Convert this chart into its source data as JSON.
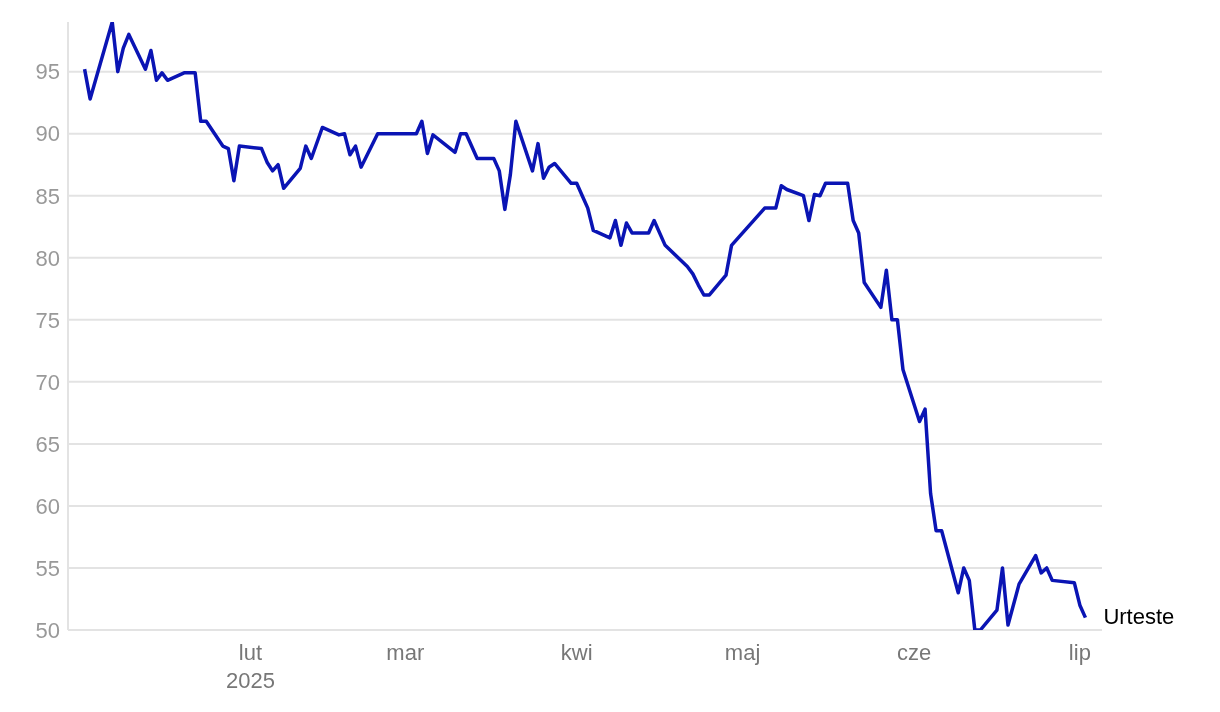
{
  "chart_data": {
    "type": "line",
    "x": [
      "2025-01-02",
      "2025-01-03",
      "2025-01-07",
      "2025-01-08",
      "2025-01-09",
      "2025-01-10",
      "2025-01-13",
      "2025-01-14",
      "2025-01-15",
      "2025-01-16",
      "2025-01-17",
      "2025-01-20",
      "2025-01-22",
      "2025-01-23",
      "2025-01-24",
      "2025-01-27",
      "2025-01-28",
      "2025-01-29",
      "2025-01-30",
      "2025-02-03",
      "2025-02-04",
      "2025-02-05",
      "2025-02-06",
      "2025-02-07",
      "2025-02-10",
      "2025-02-11",
      "2025-02-12",
      "2025-02-14",
      "2025-02-17",
      "2025-02-18",
      "2025-02-19",
      "2025-02-20",
      "2025-02-21",
      "2025-02-24",
      "2025-03-03",
      "2025-03-04",
      "2025-03-05",
      "2025-03-06",
      "2025-03-10",
      "2025-03-11",
      "2025-03-12",
      "2025-03-14",
      "2025-03-17",
      "2025-03-18",
      "2025-03-19",
      "2025-03-20",
      "2025-03-21",
      "2025-03-24",
      "2025-03-25",
      "2025-03-26",
      "2025-03-27",
      "2025-03-28",
      "2025-03-31",
      "2025-04-01",
      "2025-04-02",
      "2025-04-03",
      "2025-04-04",
      "2025-04-07",
      "2025-04-08",
      "2025-04-09",
      "2025-04-10",
      "2025-04-11",
      "2025-04-14",
      "2025-04-15",
      "2025-04-17",
      "2025-04-21",
      "2025-04-22",
      "2025-04-23",
      "2025-04-24",
      "2025-04-25",
      "2025-04-28",
      "2025-04-29",
      "2025-04-30",
      "2025-05-05",
      "2025-05-07",
      "2025-05-08",
      "2025-05-09",
      "2025-05-12",
      "2025-05-13",
      "2025-05-14",
      "2025-05-15",
      "2025-05-16",
      "2025-05-20",
      "2025-05-21",
      "2025-05-22",
      "2025-05-23",
      "2025-05-26",
      "2025-05-27",
      "2025-05-28",
      "2025-05-29",
      "2025-05-30",
      "2025-06-02",
      "2025-06-03",
      "2025-06-04",
      "2025-06-05",
      "2025-06-06",
      "2025-06-09",
      "2025-06-10",
      "2025-06-11",
      "2025-06-12",
      "2025-06-13",
      "2025-06-16",
      "2025-06-17",
      "2025-06-18",
      "2025-06-20",
      "2025-06-23",
      "2025-06-24",
      "2025-06-25",
      "2025-06-26",
      "2025-06-30",
      "2025-07-01",
      "2025-07-02"
    ],
    "series": [
      {
        "name": "Urteste",
        "color": "#0a14b4",
        "values": [
          95.2,
          92.8,
          99,
          95,
          96.9,
          98,
          95.2,
          96.7,
          94.3,
          94.9,
          94.3,
          94.9,
          94.9,
          91,
          91,
          89,
          88.8,
          86.2,
          89,
          88.8,
          87.7,
          87,
          87.5,
          85.6,
          87.2,
          89,
          88,
          90.5,
          89.9,
          90,
          88.3,
          89,
          87.3,
          90,
          90,
          91,
          88.4,
          89.9,
          88.5,
          90,
          90,
          88,
          88,
          87,
          83.9,
          86.7,
          91,
          87,
          89.2,
          86.4,
          87.3,
          87.6,
          86,
          86,
          85,
          84,
          82.2,
          81.6,
          83,
          81,
          82.8,
          82,
          82,
          83,
          81,
          79.3,
          78.7,
          77.8,
          77,
          77,
          78.6,
          81,
          81.5,
          84,
          84,
          85.8,
          85.5,
          85,
          83,
          85.1,
          85,
          86,
          86,
          83,
          82,
          78,
          76,
          79,
          75,
          75,
          71,
          66.8,
          67.8,
          61,
          58,
          58,
          53,
          55,
          54,
          50,
          50,
          51.6,
          55,
          50.4,
          53.7,
          56,
          54.6,
          55,
          54,
          53.8,
          52,
          51
        ]
      }
    ],
    "xlim": [
      "2024-12-30",
      "2025-07-05"
    ],
    "xticks": [
      {
        "value": "2025-02-01",
        "label": "lut\n2025"
      },
      {
        "value": "2025-03-01",
        "label": "mar"
      },
      {
        "value": "2025-04-01",
        "label": "kwi"
      },
      {
        "value": "2025-05-01",
        "label": "maj"
      },
      {
        "value": "2025-06-01",
        "label": "cze"
      },
      {
        "value": "2025-07-01",
        "label": "lip"
      }
    ],
    "ylim": [
      50,
      99
    ],
    "yticks": [
      50,
      55,
      60,
      65,
      70,
      75,
      80,
      85,
      90,
      95
    ],
    "grid": "y",
    "legend": false,
    "marker": "none",
    "line_style": "solid"
  }
}
